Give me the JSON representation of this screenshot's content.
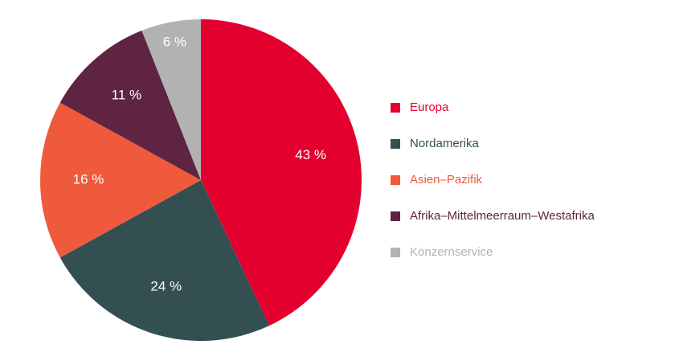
{
  "chart_data": {
    "type": "pie",
    "categories": [
      "Europa",
      "Nordamerika",
      "Asien–Pazifik",
      "Afrika–Mittelmeerraum–Westafrika",
      "Konzernservice"
    ],
    "values": [
      43,
      24,
      16,
      11,
      6
    ],
    "value_labels": [
      "43 %",
      "24 %",
      "16 %",
      "11 %",
      "6 %"
    ],
    "colors": [
      "#e3002f",
      "#344f52",
      "#ee5a3b",
      "#5e2442",
      "#b2b2b2"
    ],
    "legend": "right"
  }
}
